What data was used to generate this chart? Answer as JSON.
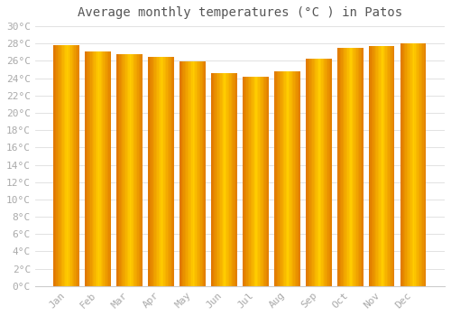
{
  "title": "Average monthly temperatures (°C ) in Patos",
  "months": [
    "Jan",
    "Feb",
    "Mar",
    "Apr",
    "May",
    "Jun",
    "Jul",
    "Aug",
    "Sep",
    "Oct",
    "Nov",
    "Dec"
  ],
  "values": [
    27.8,
    27.1,
    26.8,
    26.5,
    25.9,
    24.6,
    24.2,
    24.8,
    26.3,
    27.5,
    27.7,
    28.0
  ],
  "bar_color_center": "#FFCC00",
  "bar_color_edge": "#E07800",
  "background_color": "#FFFFFF",
  "grid_color": "#DDDDDD",
  "ylim": [
    0,
    30
  ],
  "ytick_step": 2,
  "title_fontsize": 10,
  "tick_fontsize": 8,
  "tick_label_color": "#AAAAAA",
  "title_color": "#555555",
  "bar_width": 0.82
}
